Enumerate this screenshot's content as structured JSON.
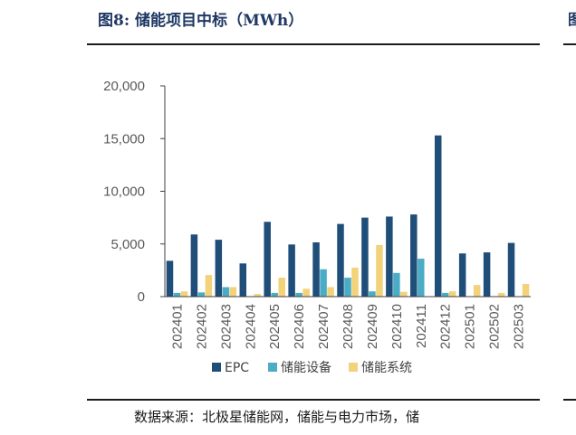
{
  "header": {
    "title": "图8:  储能项目中标（MWh）",
    "next_fig_mark": "图"
  },
  "footer": {
    "source": "数据来源：北极星储能网，储能与电力市场，储"
  },
  "chart_data": {
    "type": "bar",
    "categories": [
      "202401",
      "202402",
      "202403",
      "202404",
      "202405",
      "202406",
      "202407",
      "202408",
      "202409",
      "202410",
      "202411",
      "202412",
      "202501",
      "202502",
      "202503"
    ],
    "series": [
      {
        "name": "EPC",
        "color": "#1f4e79",
        "values": [
          3400,
          5900,
          5400,
          3150,
          7100,
          4950,
          5150,
          6900,
          7500,
          7600,
          7800,
          15300,
          4100,
          4200,
          5100
        ]
      },
      {
        "name": "储能设备",
        "color": "#4bacc6",
        "values": [
          350,
          400,
          900,
          0,
          350,
          350,
          2600,
          1800,
          500,
          2250,
          3600,
          350,
          0,
          0,
          0
        ]
      },
      {
        "name": "储能系统",
        "color": "#f2d27a",
        "values": [
          500,
          2050,
          900,
          250,
          1800,
          750,
          900,
          2750,
          4900,
          450,
          0,
          500,
          1100,
          350,
          1200
        ]
      }
    ],
    "yticks": [
      "0",
      "5,000",
      "10,000",
      "15,000",
      "20,000"
    ],
    "ylim": [
      0,
      20000
    ],
    "xlabel": "",
    "ylabel": "",
    "legend": "bottom"
  }
}
